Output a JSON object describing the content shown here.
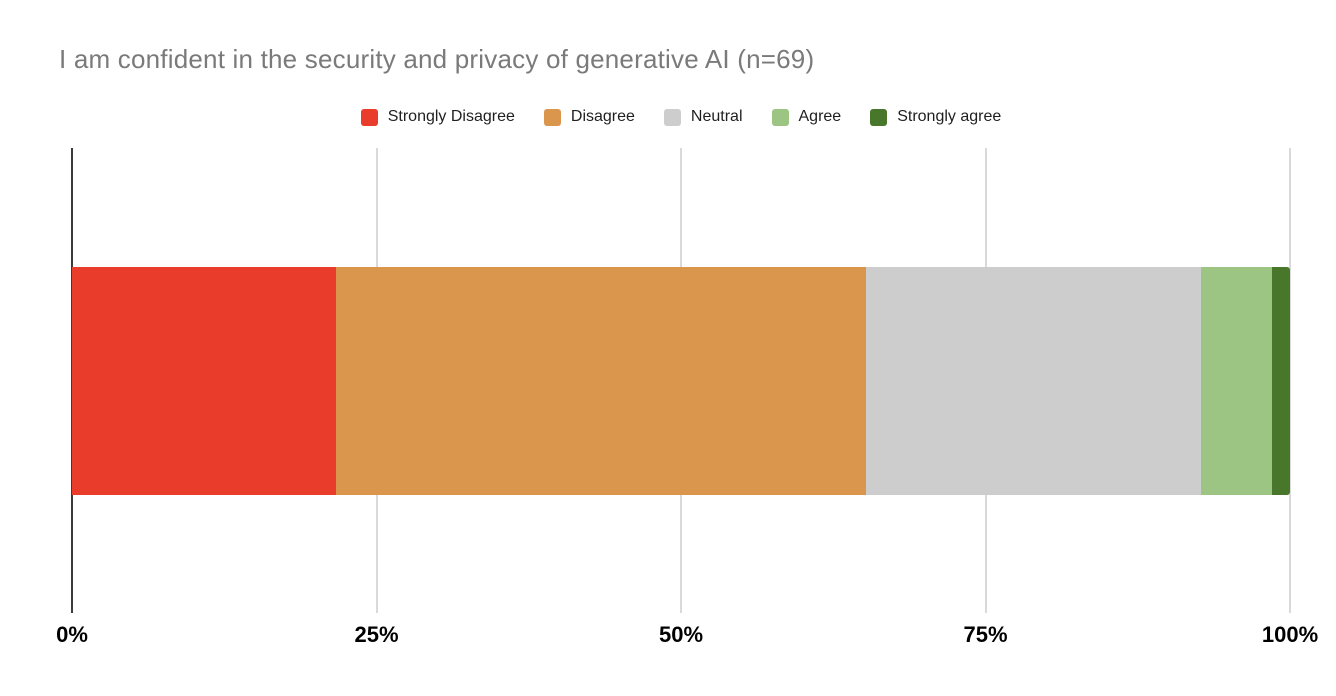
{
  "title": "I am confident in the security and privacy of generative AI (n=69)",
  "legend": [
    {
      "label": "Strongly Disagree",
      "color": "#E93C2B"
    },
    {
      "label": "Disagree",
      "color": "#DB964E"
    },
    {
      "label": "Neutral",
      "color": "#CDCDCD"
    },
    {
      "label": "Agree",
      "color": "#9CC483"
    },
    {
      "label": "Strongly agree",
      "color": "#48772C"
    }
  ],
  "chart_data": {
    "type": "bar",
    "orientation": "horizontal",
    "stacked": true,
    "percent_stacked": true,
    "title": "I am confident in the security and privacy of generative AI (n=69)",
    "n": 69,
    "series": [
      {
        "name": "Strongly Disagree",
        "value_pct": 21.7,
        "color": "#E93C2B"
      },
      {
        "name": "Disagree",
        "value_pct": 43.5,
        "color": "#DB964E"
      },
      {
        "name": "Neutral",
        "value_pct": 27.5,
        "color": "#CDCDCD"
      },
      {
        "name": "Agree",
        "value_pct": 5.8,
        "color": "#9CC483"
      },
      {
        "name": "Strongly agree",
        "value_pct": 1.5,
        "color": "#48772C"
      }
    ],
    "x_ticks": [
      "0%",
      "25%",
      "50%",
      "75%",
      "100%"
    ],
    "xlim": [
      0,
      100
    ],
    "grid": true,
    "legend_position": "top"
  }
}
